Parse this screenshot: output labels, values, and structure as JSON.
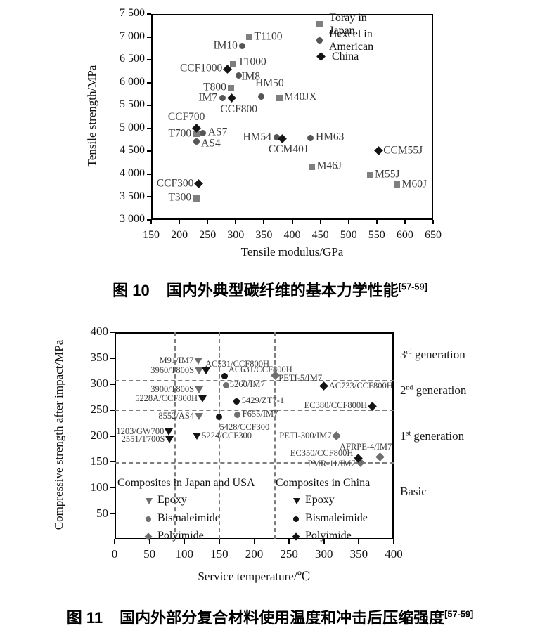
{
  "page": {
    "background": "#ffffff"
  },
  "captions": {
    "fig10": {
      "prefix": "图 10",
      "text": "国内外典型碳纤维的基本力学性能",
      "ref": "[57-59]"
    },
    "fig11": {
      "prefix": "图 11",
      "text": "国内外部分复合材料使用温度和冲击后压缩强度",
      "ref": "[57-59]"
    }
  },
  "chart_data": [
    {
      "id": "fig10",
      "type": "scatter",
      "title": "",
      "xlabel": "Tensile modulus/GPa",
      "ylabel": "Tensile strength/MPa",
      "xlim": [
        150,
        650
      ],
      "ylim": [
        3000,
        7500
      ],
      "grid": false,
      "xtick_values": [
        150,
        200,
        250,
        300,
        350,
        400,
        450,
        500,
        550,
        600,
        650
      ],
      "xtick_labels": [
        "150",
        "200",
        "250",
        "300",
        "350",
        "400",
        "450",
        "500",
        "550",
        "600",
        "650"
      ],
      "ytick_values": [
        7500,
        7000,
        6500,
        6000,
        5500,
        5000,
        4500,
        4000,
        3500,
        3000
      ],
      "ytick_labels": [
        "7 500",
        "7 000",
        "6 500",
        "6 000",
        "5 500",
        "5 000",
        "4 500",
        "4 000",
        "3 500",
        "3 000"
      ],
      "legend_position": "top-right-inside",
      "legend": [
        {
          "label": "Toray in Japan",
          "marker": "square",
          "color": "#7f7f7f"
        },
        {
          "label": "Hexcel in American",
          "marker": "circle",
          "color": "#565656"
        },
        {
          "label": "China",
          "marker": "diamond",
          "color": "#141414"
        }
      ],
      "series": [
        {
          "name": "Toray in Japan",
          "marker": "square",
          "color": "#7f7f7f",
          "points": [
            {
              "label": "T1100",
              "x": 324,
              "y": 7000,
              "pos": "right"
            },
            {
              "label": "T1000",
              "x": 295,
              "y": 6400,
              "pos": "right",
              "ldy": -3
            },
            {
              "label": "T800",
              "x": 292,
              "y": 5880,
              "pos": "left"
            },
            {
              "label": "M40JX",
              "x": 377,
              "y": 5670,
              "pos": "right"
            },
            {
              "label": "T700",
              "x": 230,
              "y": 4880,
              "pos": "left"
            },
            {
              "label": "M46J",
              "x": 435,
              "y": 4160,
              "pos": "right"
            },
            {
              "label": "M55J",
              "x": 538,
              "y": 3980,
              "pos": "right"
            },
            {
              "label": "M60J",
              "x": 586,
              "y": 3770,
              "pos": "right"
            },
            {
              "label": "T300",
              "x": 230,
              "y": 3470,
              "pos": "left"
            }
          ]
        },
        {
          "name": "Hexcel in American",
          "marker": "circle",
          "color": "#565656",
          "points": [
            {
              "label": "IM10",
              "x": 312,
              "y": 6800,
              "pos": "left"
            },
            {
              "label": "IM8",
              "x": 305,
              "y": 6160,
              "pos": "right",
              "ldx": -3,
              "ldy": 3
            },
            {
              "label": "IM7",
              "x": 276,
              "y": 5660,
              "pos": "left"
            },
            {
              "label": "HM50",
              "x": 345,
              "y": 5700,
              "pos": "above",
              "ldx": 12,
              "ldy": -2
            },
            {
              "label": "AS7",
              "x": 242,
              "y": 4900,
              "pos": "right"
            },
            {
              "label": "AS4",
              "x": 230,
              "y": 4710,
              "pos": "right",
              "ldy": 3
            },
            {
              "label": "HM54",
              "x": 372,
              "y": 4800,
              "pos": "left"
            },
            {
              "label": "HM63",
              "x": 433,
              "y": 4790,
              "pos": "right"
            }
          ]
        },
        {
          "name": "China",
          "marker": "diamond",
          "color": "#141414",
          "points": [
            {
              "label": "CCF1000",
              "x": 285,
              "y": 6300,
              "pos": "left"
            },
            {
              "label": "CCF800",
              "x": 293,
              "y": 5660,
              "pos": "below",
              "ldx": 10
            },
            {
              "label": "CCF700",
              "x": 230,
              "y": 5000,
              "pos": "above",
              "ldx": -14
            },
            {
              "label": "CCM40J",
              "x": 383,
              "y": 4780,
              "pos": "below",
              "ldx": 8
            },
            {
              "label": "CCM55J",
              "x": 553,
              "y": 4510,
              "pos": "right"
            },
            {
              "label": "CCF300",
              "x": 234,
              "y": 3790,
              "pos": "left"
            }
          ]
        }
      ]
    },
    {
      "id": "fig11",
      "type": "scatter",
      "title": "",
      "xlabel": "Service temperature/℃",
      "ylabel": "Compressive strength after impact/MPa",
      "xlim": [
        0,
        400
      ],
      "ylim": [
        0,
        400
      ],
      "grid": false,
      "xtick_values": [
        0,
        50,
        100,
        150,
        200,
        250,
        300,
        350,
        400
      ],
      "xtick_labels": [
        "0",
        "50",
        "100",
        "150",
        "200",
        "250",
        "300",
        "350",
        "400"
      ],
      "ytick_values": [
        400,
        350,
        300,
        250,
        200,
        150,
        100,
        50
      ],
      "ytick_labels": [
        "400",
        "350",
        "300",
        "250",
        "200",
        "150",
        "100",
        "50"
      ],
      "hlines": [
        307,
        250,
        148
      ],
      "vlines": [
        87,
        150,
        230
      ],
      "zones": [
        {
          "pre": "3",
          "sup": "rd",
          "post": " generation",
          "y": 357
        },
        {
          "pre": "2",
          "sup": "nd",
          "post": " generation",
          "y": 288
        },
        {
          "pre": "1",
          "sup": "st",
          "post": " generation",
          "y": 200
        },
        {
          "pre": "Basic",
          "sup": "",
          "post": "",
          "y": 92
        }
      ],
      "legends": [
        {
          "title": "Composites in Japan and USA",
          "color": "#6f6f6f",
          "items": [
            {
              "marker": "triangle",
              "label": "Epoxy"
            },
            {
              "marker": "circle",
              "label": "Bismaleimide"
            },
            {
              "marker": "diamond",
              "label": "Polyimide"
            }
          ]
        },
        {
          "title": "Composites in China",
          "color": "#141414",
          "items": [
            {
              "marker": "triangle",
              "label": "Epoxy"
            },
            {
              "marker": "circle",
              "label": "Bismaleimide"
            },
            {
              "marker": "diamond",
              "label": "Polyimide"
            }
          ]
        }
      ],
      "series": [
        {
          "name": "Japan/USA Epoxy",
          "marker": "triangle",
          "color": "#6f6f6f",
          "points": [
            {
              "label": "M91/IM7",
              "x": 120,
              "y": 345,
              "pos": "left"
            },
            {
              "label": "3960/T800S",
              "x": 121,
              "y": 325,
              "pos": "left"
            },
            {
              "label": "3900/T800S",
              "x": 121,
              "y": 289,
              "pos": "left"
            },
            {
              "label": "8552/AS4",
              "x": 121,
              "y": 237,
              "pos": "left"
            }
          ]
        },
        {
          "name": "Japan/USA Bismaleimide",
          "marker": "circle",
          "color": "#6f6f6f",
          "points": [
            {
              "label": "5260/IM7",
              "x": 160,
              "y": 298,
              "pos": "right",
              "ldx": -2
            },
            {
              "label": "F655/IM7",
              "x": 176,
              "y": 241,
              "pos": "right"
            }
          ]
        },
        {
          "name": "Japan/USA Polyimide",
          "marker": "diamond",
          "color": "#6f6f6f",
          "points": [
            {
              "label": "PETI-5/IM7",
              "x": 230,
              "y": 316,
              "pos": "right",
              "ldx": -2,
              "ldy": 4
            },
            {
              "label": "PETI-300/IM7",
              "x": 318,
              "y": 200,
              "pos": "left"
            },
            {
              "label": "AFRPE-4/IM7",
              "x": 380,
              "y": 159,
              "pos": "above",
              "ldx": -20
            },
            {
              "label": "PMR-11/IM7",
              "x": 352,
              "y": 148,
              "pos": "left",
              "ldy": 2
            }
          ]
        },
        {
          "name": "China Epoxy",
          "marker": "triangle",
          "color": "#141414",
          "points": [
            {
              "label": "AC531/CCF800H",
              "x": 131,
              "y": 325,
              "pos": "above-right",
              "ldx": -4,
              "ldy": 2
            },
            {
              "label": "5228A/CCF800H",
              "x": 126,
              "y": 271,
              "pos": "left"
            },
            {
              "label": "5224/CCF300",
              "x": 118,
              "y": 199,
              "pos": "right"
            },
            {
              "label": "1203/GW700",
              "x": 78,
              "y": 207,
              "pos": "left"
            },
            {
              "label": "2551/T700S",
              "x": 79,
              "y": 193,
              "pos": "left"
            }
          ]
        },
        {
          "name": "China Bismaleimide",
          "marker": "circle",
          "color": "#141414",
          "points": [
            {
              "label": "AC631/CCF800H",
              "x": 158,
              "y": 315,
              "pos": "above-right",
              "ldx": 2,
              "ldy": 2
            },
            {
              "label": "5429/ZT7-1",
              "x": 175,
              "y": 267,
              "pos": "right"
            },
            {
              "label": "5428/CCF300",
              "x": 150,
              "y": 237,
              "pos": "below",
              "ldx": 36,
              "ldy": 1
            }
          ]
        },
        {
          "name": "China Polyimide",
          "marker": "diamond",
          "color": "#141414",
          "points": [
            {
              "label": "AC733/CCF800H",
              "x": 300,
              "y": 296,
              "pos": "right"
            },
            {
              "label": "EC380/CCF800H",
              "x": 369,
              "y": 257,
              "pos": "left"
            },
            {
              "label": "EC350/CCF800H",
              "x": 349,
              "y": 157,
              "pos": "left",
              "ldy": -6
            }
          ]
        }
      ]
    }
  ]
}
